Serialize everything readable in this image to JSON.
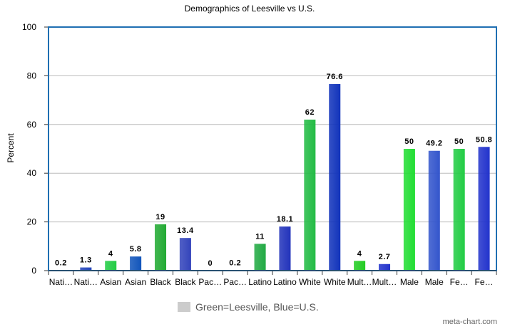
{
  "chart_data": {
    "type": "bar",
    "title": "Demographics of Leesville vs U.S.",
    "xlabel": "",
    "ylabel": "Percent",
    "ylim": [
      0,
      100
    ],
    "yticks": [
      0,
      20,
      40,
      60,
      80,
      100
    ],
    "grid": true,
    "categories": [
      "Nati…",
      "Nati…",
      "Asian",
      "Asian",
      "Black",
      "Black",
      "Pac…",
      "Pac…",
      "Latino",
      "Latino",
      "White",
      "White",
      "Mult…",
      "Mult…",
      "Male",
      "Male",
      "Fe…",
      "Fe…"
    ],
    "values": [
      0.2,
      1.3,
      4,
      5.8,
      19,
      13.4,
      0,
      0.2,
      11,
      18.1,
      62,
      76.6,
      4,
      2.7,
      50,
      49.2,
      50,
      50.8
    ],
    "labels": [
      "0.2",
      "1.3",
      "4",
      "5.8",
      "19",
      "13.4",
      "0",
      "0.2",
      "11",
      "18.1",
      "62",
      "76.6",
      "4",
      "2.7",
      "50",
      "49.2",
      "50",
      "50.8"
    ],
    "groups": [
      "Leesville",
      "U.S.",
      "Leesville",
      "U.S.",
      "Leesville",
      "U.S.",
      "Leesville",
      "U.S.",
      "Leesville",
      "U.S.",
      "Leesville",
      "U.S.",
      "Leesville",
      "U.S.",
      "Leesville",
      "U.S.",
      "Leesville",
      "U.S."
    ],
    "colors": [
      "#22bb44",
      "#2244bb",
      "#22cc44",
      "#1155bb",
      "#22aa33",
      "#3344bb",
      "#22bb44",
      "#2244bb",
      "#22aa44",
      "#2233bb",
      "#22bb44",
      "#1133bb",
      "#22cc22",
      "#2233cc",
      "#22dd33",
      "#3355cc",
      "#22cc44",
      "#2233cc"
    ],
    "legend": {
      "label": "Green=Leesville, Blue=U.S.",
      "swatch_color": "#cccccc",
      "position": "bottom-center"
    }
  },
  "credit": "meta-chart.com"
}
